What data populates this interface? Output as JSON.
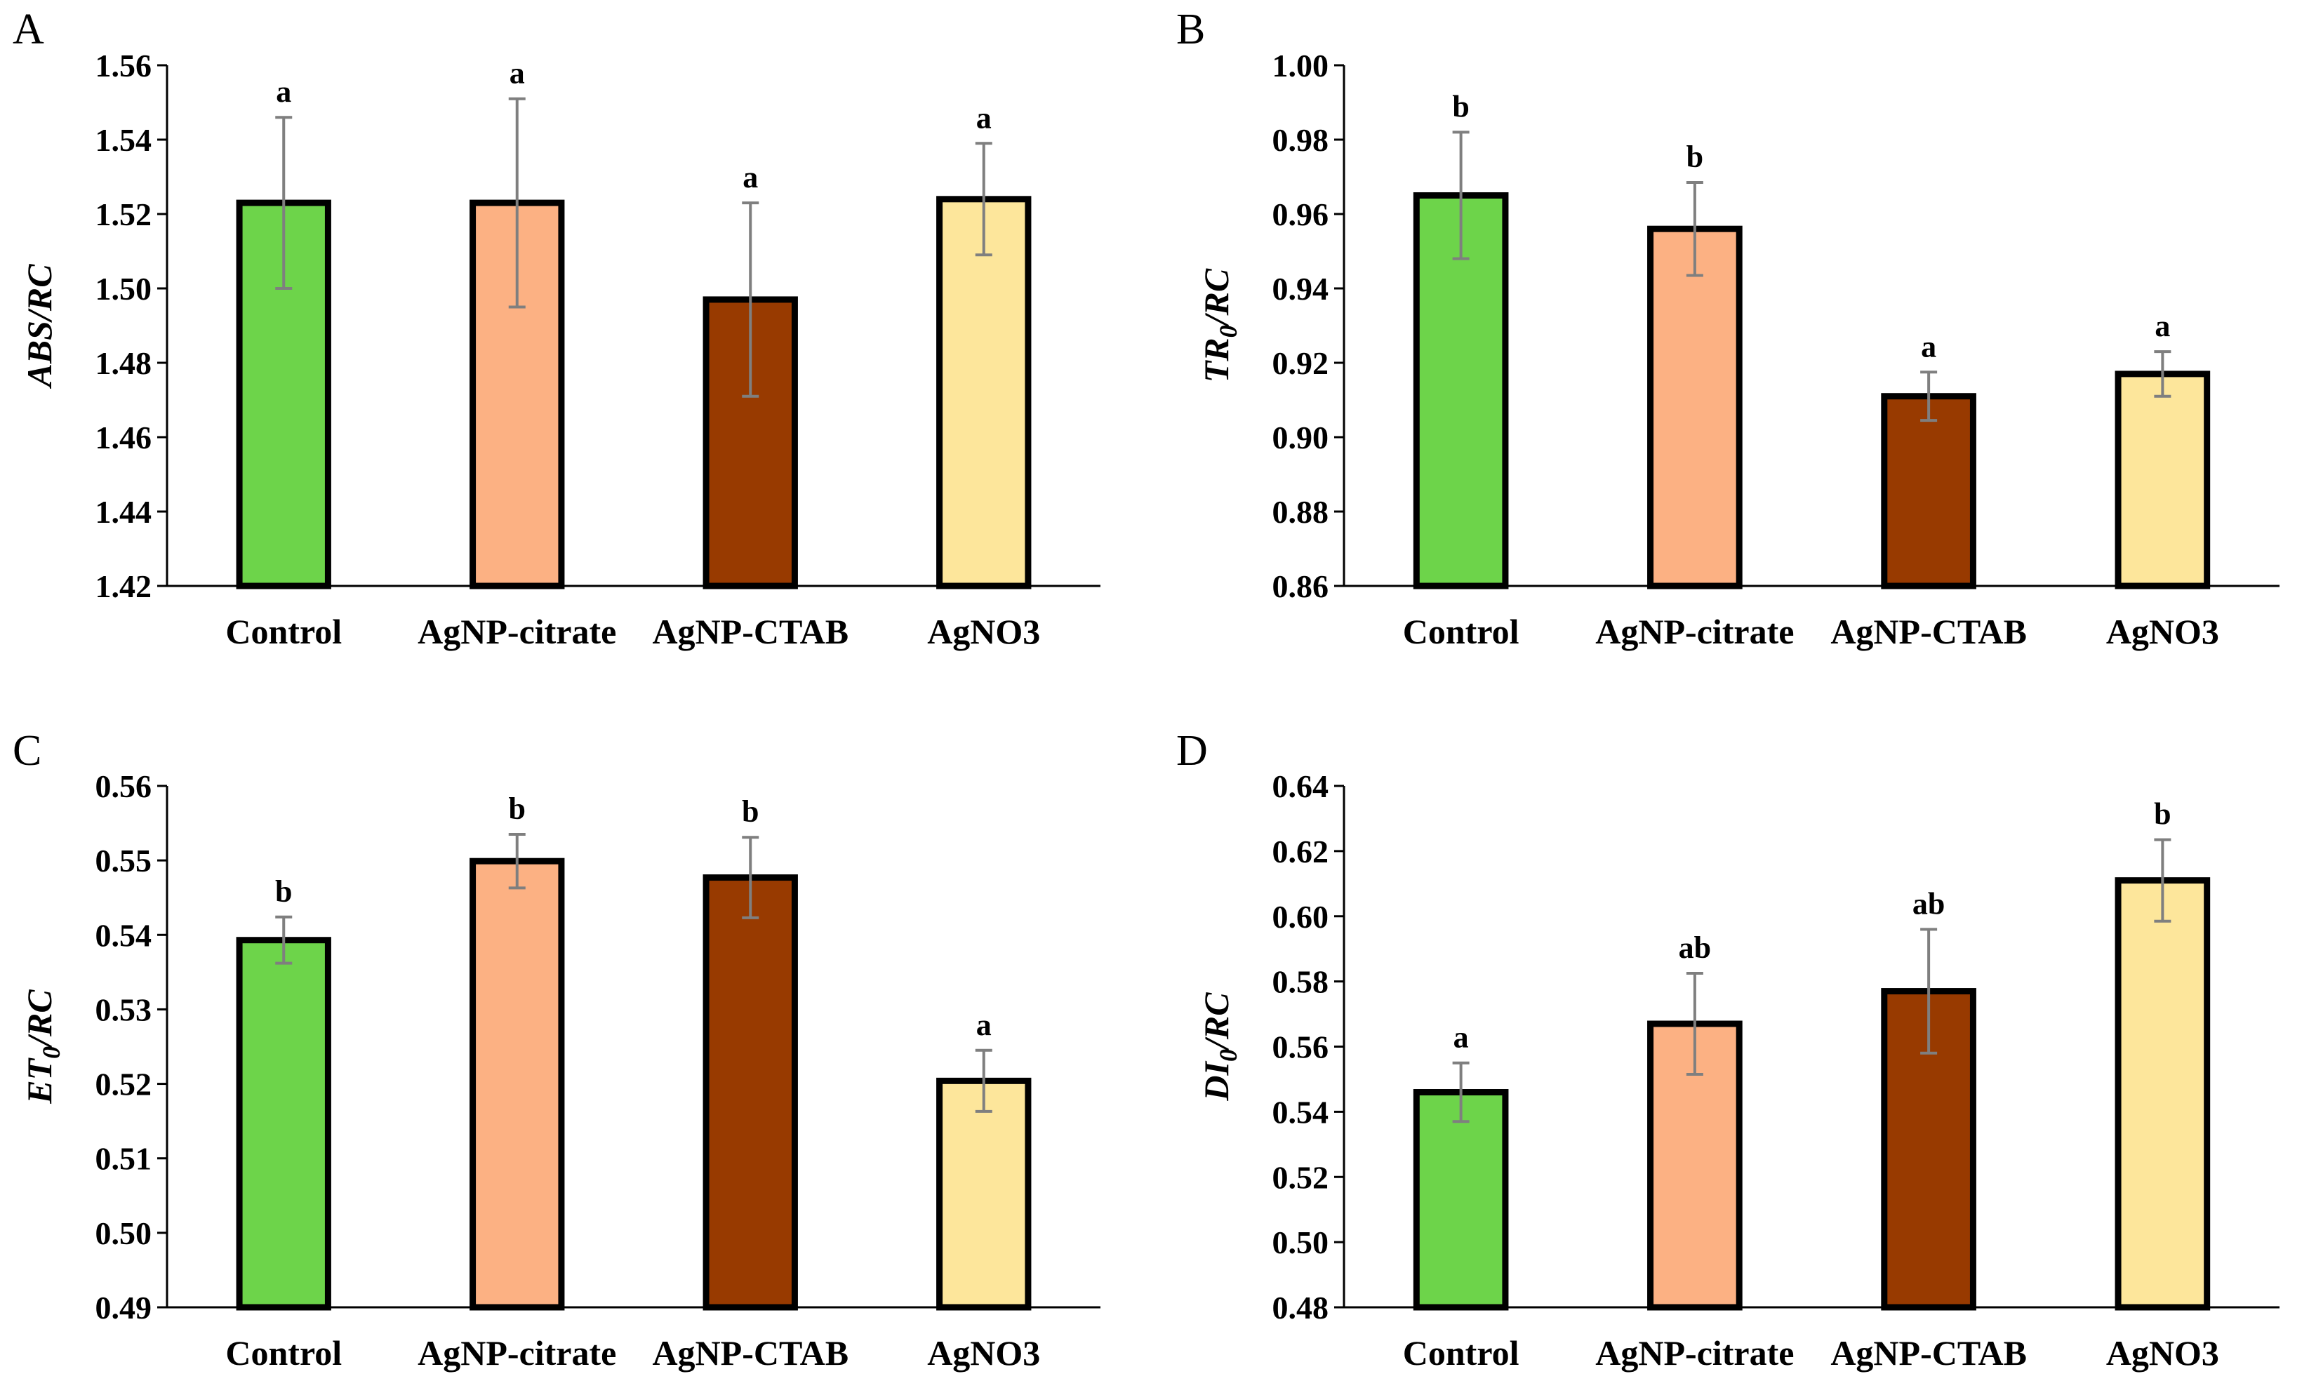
{
  "chart_data": [
    {
      "panel": "A",
      "type": "bar",
      "ylabel": {
        "main": "ABS/RC",
        "sub": "",
        "tail": ""
      },
      "categories": [
        "Control",
        "AgNP-citrate",
        "AgNP-CTAB",
        "AgNO3"
      ],
      "values": [
        1.523,
        1.523,
        1.497,
        1.524
      ],
      "errors": [
        0.023,
        0.028,
        0.026,
        0.015
      ],
      "significance": [
        "a",
        "a",
        "a",
        "a"
      ],
      "ylim": [
        1.42,
        1.56
      ],
      "yticks": [
        "1.42",
        "1.44",
        "1.46",
        "1.48",
        "1.50",
        "1.52",
        "1.54",
        "1.56"
      ],
      "colors": [
        "#6dd44a",
        "#fcb183",
        "#983a00",
        "#fde69b"
      ]
    },
    {
      "panel": "B",
      "type": "bar",
      "ylabel": {
        "main": "TR",
        "sub": "0",
        "tail": "/RC"
      },
      "categories": [
        "Control",
        "AgNP-citrate",
        "AgNP-CTAB",
        "AgNO3"
      ],
      "values": [
        0.965,
        0.956,
        0.911,
        0.917
      ],
      "errors": [
        0.017,
        0.0125,
        0.0065,
        0.006
      ],
      "significance": [
        "b",
        "b",
        "a",
        "a"
      ],
      "ylim": [
        0.86,
        1.0
      ],
      "yticks": [
        "0.86",
        "0.88",
        "0.90",
        "0.92",
        "0.94",
        "0.96",
        "0.98",
        "1.00"
      ],
      "colors": [
        "#6dd44a",
        "#fcb183",
        "#983a00",
        "#fde69b"
      ]
    },
    {
      "panel": "C",
      "type": "bar",
      "ylabel": {
        "main": "ET",
        "sub": "0",
        "tail": "/RC"
      },
      "categories": [
        "Control",
        "AgNP-citrate",
        "AgNP-CTAB",
        "AgNO3"
      ],
      "values": [
        0.5393,
        0.5499,
        0.5477,
        0.5204
      ],
      "errors": [
        0.0031,
        0.0036,
        0.0054,
        0.0041
      ],
      "significance": [
        "b",
        "b",
        "b",
        "a"
      ],
      "ylim": [
        0.49,
        0.56
      ],
      "yticks": [
        "0.49",
        "0.50",
        "0.51",
        "0.52",
        "0.53",
        "0.54",
        "0.55",
        "0.56"
      ],
      "colors": [
        "#6dd44a",
        "#fcb183",
        "#983a00",
        "#fde69b"
      ]
    },
    {
      "panel": "D",
      "type": "bar",
      "ylabel": {
        "main": "DI",
        "sub": "0",
        "tail": "/RC"
      },
      "categories": [
        "Control",
        "AgNP-citrate",
        "AgNP-CTAB",
        "AgNO3"
      ],
      "values": [
        0.546,
        0.567,
        0.577,
        0.611
      ],
      "errors": [
        0.009,
        0.0155,
        0.019,
        0.0125
      ],
      "significance": [
        "a",
        "ab",
        "ab",
        "b"
      ],
      "ylim": [
        0.48,
        0.64
      ],
      "yticks": [
        "0.48",
        "0.50",
        "0.52",
        "0.54",
        "0.56",
        "0.58",
        "0.60",
        "0.62",
        "0.64"
      ],
      "colors": [
        "#6dd44a",
        "#fcb183",
        "#983a00",
        "#fde69b"
      ]
    }
  ]
}
